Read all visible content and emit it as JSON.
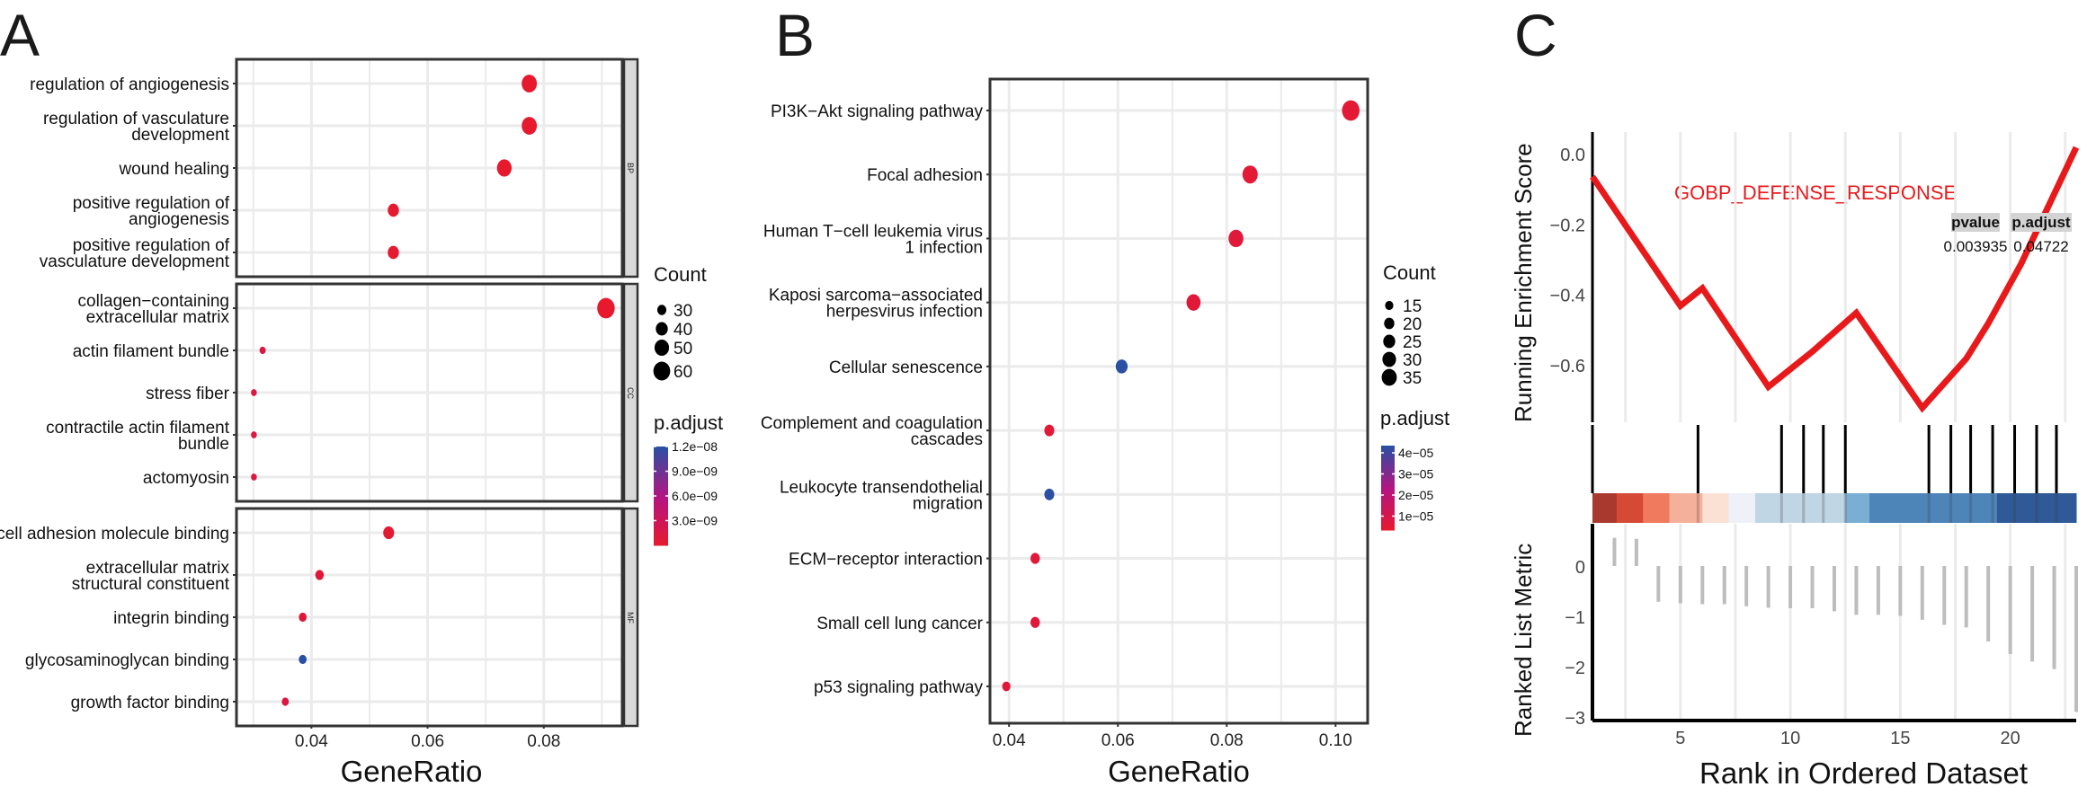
{
  "panels": {
    "A": {
      "letter": "A"
    },
    "B": {
      "letter": "B"
    },
    "C": {
      "letter": "C"
    }
  },
  "colors": {
    "low_padj": "#e8192c",
    "high_padj": "#2b4fa3",
    "es_line": "#e8191b",
    "grid": "#ebebeb",
    "strip_fill": "#d9d9d9",
    "metric_bar": "#bdbdbd"
  },
  "chart_data": [
    {
      "id": "A",
      "type": "scatter",
      "title": "",
      "xlabel": "GeneRatio",
      "ylabel": "",
      "xlim": [
        0.0271,
        0.0935
      ],
      "x_ticks": [
        0.04,
        0.06,
        0.08
      ],
      "x_tick_labels": [
        "0.04",
        "0.06",
        "0.08"
      ],
      "grid": true,
      "facets": [
        {
          "strip": "BP",
          "terms": [
            {
              "label": [
                "regulation of angiogenesis"
              ],
              "gene_ratio": 0.0775,
              "count": 48,
              "p_adjust": 2e-10
            },
            {
              "label": [
                "regulation of vasculature",
                "development"
              ],
              "gene_ratio": 0.0775,
              "count": 48,
              "p_adjust": 2e-10
            },
            {
              "label": [
                "wound healing"
              ],
              "gene_ratio": 0.0732,
              "count": 46,
              "p_adjust": 1e-10
            },
            {
              "label": [
                "positive regulation of",
                "angiogenesis"
              ],
              "gene_ratio": 0.0541,
              "count": 34,
              "p_adjust": 3e-10
            },
            {
              "label": [
                "positive regulation of",
                "vasculature development"
              ],
              "gene_ratio": 0.0541,
              "count": 34,
              "p_adjust": 3e-10
            }
          ]
        },
        {
          "strip": "CC",
          "terms": [
            {
              "label": [
                "collagen−containing",
                "extracellular matrix"
              ],
              "gene_ratio": 0.0907,
              "count": 57,
              "p_adjust": 1e-11
            },
            {
              "label": [
                "actin filament bundle"
              ],
              "gene_ratio": 0.0316,
              "count": 20,
              "p_adjust": 1.5e-09
            },
            {
              "label": [
                "stress fiber"
              ],
              "gene_ratio": 0.0301,
              "count": 19,
              "p_adjust": 1.5e-09
            },
            {
              "label": [
                "contractile actin filament",
                "bundle"
              ],
              "gene_ratio": 0.0301,
              "count": 19,
              "p_adjust": 1.5e-09
            },
            {
              "label": [
                "actomyosin"
              ],
              "gene_ratio": 0.0301,
              "count": 19,
              "p_adjust": 1.5e-09
            }
          ]
        },
        {
          "strip": "MF",
          "terms": [
            {
              "label": [
                "cell adhesion molecule binding"
              ],
              "gene_ratio": 0.0533,
              "count": 33,
              "p_adjust": 5e-10
            },
            {
              "label": [
                "extracellular matrix",
                "structural constituent"
              ],
              "gene_ratio": 0.0414,
              "count": 26,
              "p_adjust": 1e-09
            },
            {
              "label": [
                "integrin binding"
              ],
              "gene_ratio": 0.0385,
              "count": 24,
              "p_adjust": 1e-09
            },
            {
              "label": [
                "glycosaminoglycan binding"
              ],
              "gene_ratio": 0.0385,
              "count": 24,
              "p_adjust": 1.2e-08
            },
            {
              "label": [
                "growth factor binding"
              ],
              "gene_ratio": 0.0355,
              "count": 22,
              "p_adjust": 1.5e-09
            }
          ]
        }
      ],
      "legend": {
        "size_title": "Count",
        "size_breaks": [
          30,
          40,
          50,
          60
        ],
        "size_labels": [
          "30",
          "40",
          "50",
          "60"
        ],
        "color_title": "p.adjust",
        "color_range": [
          0,
          1.2e-08
        ],
        "color_breaks": [
          1.2e-08,
          9e-09,
          6e-09,
          3e-09
        ],
        "color_labels": [
          "1.2e−08",
          "9.0e−09",
          "6.0e−09",
          "3.0e−09"
        ],
        "placement": "right"
      }
    },
    {
      "id": "B",
      "type": "scatter",
      "title": "",
      "xlabel": "GeneRatio",
      "ylabel": "",
      "xlim": [
        0.0365,
        0.1059
      ],
      "x_ticks": [
        0.04,
        0.06,
        0.08,
        0.1
      ],
      "x_tick_labels": [
        "0.04",
        "0.06",
        "0.08",
        "0.10"
      ],
      "grid": true,
      "terms": [
        {
          "label": [
            "PI3K−Akt signaling pathway"
          ],
          "gene_ratio": 0.1028,
          "count": 33,
          "p_adjust": 2e-06
        },
        {
          "label": [
            "Focal adhesion"
          ],
          "gene_ratio": 0.0843,
          "count": 27,
          "p_adjust": 2e-06
        },
        {
          "label": [
            "Human T−cell leukemia virus",
            "1 infection"
          ],
          "gene_ratio": 0.0817,
          "count": 26,
          "p_adjust": 3e-06
        },
        {
          "label": [
            "Kaposi sarcoma−associated",
            "herpesvirus infection"
          ],
          "gene_ratio": 0.0739,
          "count": 24,
          "p_adjust": 3e-06
        },
        {
          "label": [
            "Cellular senescence"
          ],
          "gene_ratio": 0.0607,
          "count": 19,
          "p_adjust": 4e-05
        },
        {
          "label": [
            "Complement and coagulation",
            "cascades"
          ],
          "gene_ratio": 0.0474,
          "count": 15,
          "p_adjust": 2e-06
        },
        {
          "label": [
            "Leukocyte transendothelial",
            "migration"
          ],
          "gene_ratio": 0.0474,
          "count": 15,
          "p_adjust": 4e-05
        },
        {
          "label": [
            "ECM−receptor interaction"
          ],
          "gene_ratio": 0.0448,
          "count": 14,
          "p_adjust": 3e-06
        },
        {
          "label": [
            "Small cell lung cancer"
          ],
          "gene_ratio": 0.0448,
          "count": 14,
          "p_adjust": 3e-06
        },
        {
          "label": [
            "p53 signaling pathway"
          ],
          "gene_ratio": 0.0395,
          "count": 12,
          "p_adjust": 3e-06
        }
      ],
      "legend": {
        "size_title": "Count",
        "size_breaks": [
          15,
          20,
          25,
          30,
          35
        ],
        "size_labels": [
          "15",
          "20",
          "25",
          "30",
          "35"
        ],
        "color_title": "p.adjust",
        "color_range": [
          0,
          4e-05
        ],
        "color_breaks": [
          4e-05,
          3e-05,
          2e-05,
          1e-05
        ],
        "color_labels": [
          "4e−05",
          "3e−05",
          "2e−05",
          "1e−05"
        ],
        "placement": "right"
      }
    },
    {
      "id": "C",
      "type": "line",
      "title": "GOBP_DEFENSE_RESPONSE",
      "xlabel": "Rank in Ordered Dataset",
      "ylabel_top": "Running Enrichment Score",
      "ylabel_bottom": "Ranked List Metric",
      "xlim": [
        1,
        23
      ],
      "x_ticks": [
        5,
        10,
        15,
        20
      ],
      "x_tick_labels": [
        "5",
        "10",
        "15",
        "20"
      ],
      "es_ylim": [
        -0.76,
        0.1
      ],
      "es_ticks": [
        0.0,
        -0.2,
        -0.4,
        -0.6
      ],
      "es_tick_labels": [
        "0.0",
        "−0.2",
        "−0.4",
        "−0.6"
      ],
      "metric_ylim": [
        -3,
        0.8
      ],
      "metric_ticks": [
        0,
        -1,
        -2,
        -3
      ],
      "metric_tick_labels": [
        "0",
        "−1",
        "−2",
        "−3"
      ],
      "running_es": {
        "x": [
          1,
          5,
          6,
          9,
          11,
          13,
          16,
          18,
          19,
          20.5,
          23
        ],
        "y": [
          -0.063,
          -0.43,
          -0.38,
          -0.66,
          -0.56,
          -0.45,
          -0.72,
          -0.58,
          -0.48,
          -0.31,
          0.02
        ]
      },
      "hits": [
        5.8,
        9.6,
        10.6,
        11.5,
        12.5,
        16.3,
        17.3,
        18.2,
        19.2,
        20.2,
        21.2,
        22.1
      ],
      "ranked_metric": {
        "x": [
          2,
          3,
          4,
          5,
          6,
          7,
          8,
          9,
          10,
          11,
          12,
          13,
          14,
          15,
          16,
          17,
          18,
          19,
          20,
          21,
          22,
          23
        ],
        "y": [
          0.56,
          0.54,
          -0.71,
          -0.74,
          -0.76,
          -0.76,
          -0.8,
          -0.83,
          -0.84,
          -0.84,
          -0.9,
          -0.97,
          -0.97,
          -0.99,
          -1.07,
          -1.17,
          -1.22,
          -1.5,
          -1.75,
          -1.9,
          -2.05,
          -2.9
        ]
      },
      "color_bar": {
        "breaks": [
          1,
          2.1,
          3.3,
          4.5,
          6.0,
          7.2,
          8.4,
          12.5,
          13.6,
          19.4,
          23
        ],
        "colors": [
          "#a9392f",
          "#d64a35",
          "#ef7a5e",
          "#f4b09a",
          "#fbe0d4",
          "#eef2f8",
          "#c0d6e4",
          "#7aaed2",
          "#4d85b8",
          "#2f5997"
        ]
      },
      "stats": {
        "headers": [
          "pvalue",
          "p.adjust"
        ],
        "values": [
          "0.003935",
          "0.04722"
        ]
      }
    }
  ]
}
